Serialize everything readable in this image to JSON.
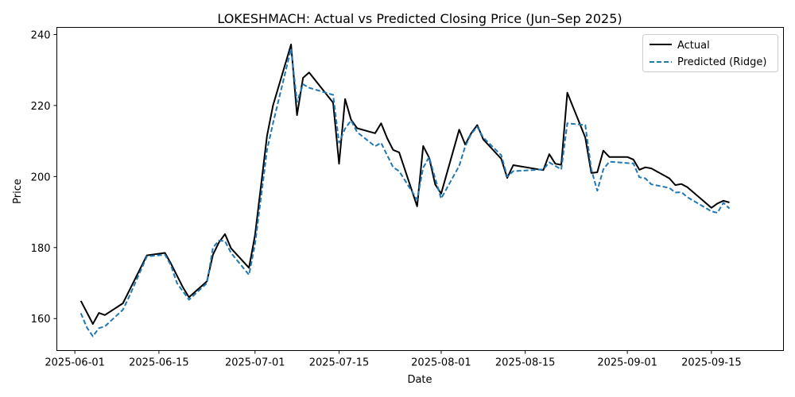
{
  "chart_data": {
    "type": "line",
    "title": "LOKESHMACH: Actual vs Predicted Closing Price (Jun–Sep 2025)",
    "xlabel": "Date",
    "ylabel": "Price",
    "xlim": [
      "2025-05-29",
      "2025-09-27"
    ],
    "ylim": [
      151,
      242
    ],
    "xticks": [
      "2025-06-01",
      "2025-06-15",
      "2025-07-01",
      "2025-07-15",
      "2025-08-01",
      "2025-08-15",
      "2025-09-01",
      "2025-09-15"
    ],
    "yticks": [
      160,
      180,
      200,
      220,
      240
    ],
    "grid": false,
    "legend_position": "top-right",
    "series": [
      {
        "name": "Actual",
        "color": "#000000",
        "style": "solid",
        "points": [
          [
            "2025-06-02",
            165.0
          ],
          [
            "2025-06-04",
            158.5
          ],
          [
            "2025-06-05",
            161.6
          ],
          [
            "2025-06-06",
            161.0
          ],
          [
            "2025-06-09",
            164.3
          ],
          [
            "2025-06-13",
            177.8
          ],
          [
            "2025-06-16",
            178.5
          ],
          [
            "2025-06-17",
            175.5
          ],
          [
            "2025-06-19",
            168.8
          ],
          [
            "2025-06-20",
            166.0
          ],
          [
            "2025-06-23",
            170.5
          ],
          [
            "2025-06-24",
            178.0
          ],
          [
            "2025-06-25",
            181.5
          ],
          [
            "2025-06-26",
            183.8
          ],
          [
            "2025-06-27",
            179.8
          ],
          [
            "2025-06-30",
            174.3
          ],
          [
            "2025-07-01",
            183.5
          ],
          [
            "2025-07-03",
            211.5
          ],
          [
            "2025-07-04",
            220.0
          ],
          [
            "2025-07-07",
            237.2
          ],
          [
            "2025-07-08",
            217.3
          ],
          [
            "2025-07-09",
            227.8
          ],
          [
            "2025-07-10",
            229.3
          ],
          [
            "2025-07-14",
            220.8
          ],
          [
            "2025-07-15",
            203.6
          ],
          [
            "2025-07-16",
            221.8
          ],
          [
            "2025-07-17",
            216.0
          ],
          [
            "2025-07-18",
            213.6
          ],
          [
            "2025-07-21",
            212.2
          ],
          [
            "2025-07-22",
            215.0
          ],
          [
            "2025-07-23",
            210.8
          ],
          [
            "2025-07-24",
            207.5
          ],
          [
            "2025-07-25",
            206.8
          ],
          [
            "2025-07-28",
            191.6
          ],
          [
            "2025-07-29",
            208.6
          ],
          [
            "2025-07-30",
            205.3
          ],
          [
            "2025-07-31",
            197.8
          ],
          [
            "2025-08-01",
            195.2
          ],
          [
            "2025-08-04",
            213.2
          ],
          [
            "2025-08-05",
            209.0
          ],
          [
            "2025-08-06",
            212.2
          ],
          [
            "2025-08-07",
            214.5
          ],
          [
            "2025-08-08",
            210.5
          ],
          [
            "2025-08-11",
            205.0
          ],
          [
            "2025-08-12",
            199.6
          ],
          [
            "2025-08-13",
            203.2
          ],
          [
            "2025-08-18",
            201.8
          ],
          [
            "2025-08-19",
            206.3
          ],
          [
            "2025-08-20",
            203.6
          ],
          [
            "2025-08-21",
            203.3
          ],
          [
            "2025-08-22",
            223.6
          ],
          [
            "2025-08-25",
            211.0
          ],
          [
            "2025-08-26",
            201.0
          ],
          [
            "2025-08-27",
            201.2
          ],
          [
            "2025-08-28",
            207.3
          ],
          [
            "2025-08-29",
            205.5
          ],
          [
            "2025-09-01",
            205.5
          ],
          [
            "2025-09-02",
            204.8
          ],
          [
            "2025-09-03",
            201.9
          ],
          [
            "2025-09-04",
            202.6
          ],
          [
            "2025-09-05",
            202.3
          ],
          [
            "2025-09-08",
            199.5
          ],
          [
            "2025-09-09",
            197.6
          ],
          [
            "2025-09-10",
            197.9
          ],
          [
            "2025-09-11",
            197.0
          ],
          [
            "2025-09-15",
            191.2
          ],
          [
            "2025-09-16",
            192.4
          ],
          [
            "2025-09-17",
            193.2
          ],
          [
            "2025-09-18",
            192.7
          ]
        ]
      },
      {
        "name": "Predicted (Ridge)",
        "color": "#1f77b4",
        "style": "dashed",
        "points": [
          [
            "2025-06-02",
            161.5
          ],
          [
            "2025-06-03",
            157.5
          ],
          [
            "2025-06-04",
            155.0
          ],
          [
            "2025-06-05",
            157.3
          ],
          [
            "2025-06-06",
            157.8
          ],
          [
            "2025-06-09",
            162.5
          ],
          [
            "2025-06-10",
            166.0
          ],
          [
            "2025-06-13",
            177.5
          ],
          [
            "2025-06-16",
            178.0
          ],
          [
            "2025-06-17",
            175.0
          ],
          [
            "2025-06-18",
            170.0
          ],
          [
            "2025-06-20",
            165.3
          ],
          [
            "2025-06-23",
            170.0
          ],
          [
            "2025-06-24",
            180.0
          ],
          [
            "2025-06-25",
            182.0
          ],
          [
            "2025-06-26",
            181.8
          ],
          [
            "2025-06-27",
            178.5
          ],
          [
            "2025-06-30",
            172.3
          ],
          [
            "2025-07-01",
            181.0
          ],
          [
            "2025-07-03",
            207.5
          ],
          [
            "2025-07-04",
            215.0
          ],
          [
            "2025-07-07",
            236.0
          ],
          [
            "2025-07-08",
            221.0
          ],
          [
            "2025-07-09",
            226.0
          ],
          [
            "2025-07-10",
            225.0
          ],
          [
            "2025-07-14",
            223.0
          ],
          [
            "2025-07-15",
            209.5
          ],
          [
            "2025-07-16",
            213.5
          ],
          [
            "2025-07-17",
            215.8
          ],
          [
            "2025-07-18",
            212.5
          ],
          [
            "2025-07-21",
            208.5
          ],
          [
            "2025-07-22",
            209.5
          ],
          [
            "2025-07-23",
            206.0
          ],
          [
            "2025-07-24",
            202.6
          ],
          [
            "2025-07-25",
            201.5
          ],
          [
            "2025-07-28",
            193.5
          ],
          [
            "2025-07-29",
            202.5
          ],
          [
            "2025-07-30",
            205.5
          ],
          [
            "2025-07-31",
            199.5
          ],
          [
            "2025-08-01",
            193.8
          ],
          [
            "2025-08-04",
            203.0
          ],
          [
            "2025-08-05",
            208.5
          ],
          [
            "2025-08-06",
            212.0
          ],
          [
            "2025-08-07",
            214.0
          ],
          [
            "2025-08-08",
            211.0
          ],
          [
            "2025-08-11",
            206.0
          ],
          [
            "2025-08-12",
            200.0
          ],
          [
            "2025-08-13",
            201.5
          ],
          [
            "2025-08-18",
            202.0
          ],
          [
            "2025-08-19",
            204.0
          ],
          [
            "2025-08-21",
            202.0
          ],
          [
            "2025-08-22",
            215.0
          ],
          [
            "2025-08-25",
            214.5
          ],
          [
            "2025-08-26",
            202.0
          ],
          [
            "2025-08-27",
            196.0
          ],
          [
            "2025-08-28",
            202.0
          ],
          [
            "2025-08-29",
            204.2
          ],
          [
            "2025-09-01",
            203.8
          ],
          [
            "2025-09-02",
            203.7
          ],
          [
            "2025-09-03",
            199.8
          ],
          [
            "2025-09-04",
            199.5
          ],
          [
            "2025-09-05",
            197.8
          ],
          [
            "2025-09-08",
            196.8
          ],
          [
            "2025-09-09",
            195.5
          ],
          [
            "2025-09-10",
            195.6
          ],
          [
            "2025-09-11",
            194.2
          ],
          [
            "2025-09-15",
            190.2
          ],
          [
            "2025-09-16",
            189.8
          ],
          [
            "2025-09-17",
            192.6
          ],
          [
            "2025-09-18",
            191.0
          ]
        ]
      }
    ]
  }
}
